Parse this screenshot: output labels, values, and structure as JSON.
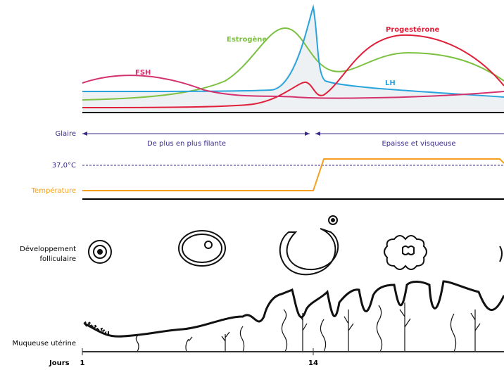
{
  "hormones": {
    "fsh": "FSH",
    "estrogen": "Estrogène",
    "progesterone": "Progestérone",
    "lh": "LH"
  },
  "glaire": {
    "label": "Glaire",
    "phase1": "De plus en plus filante",
    "phase2": "Epaisse et visqueuse"
  },
  "temperature": {
    "threshold": "37,0°C",
    "label": "Température"
  },
  "follicles": {
    "label": [
      "Développement",
      "folliculaire"
    ]
  },
  "mucosa": {
    "label": "Muqueuse utérine"
  },
  "days": {
    "label": "Jours",
    "start": "1",
    "ovulation": "14"
  }
}
